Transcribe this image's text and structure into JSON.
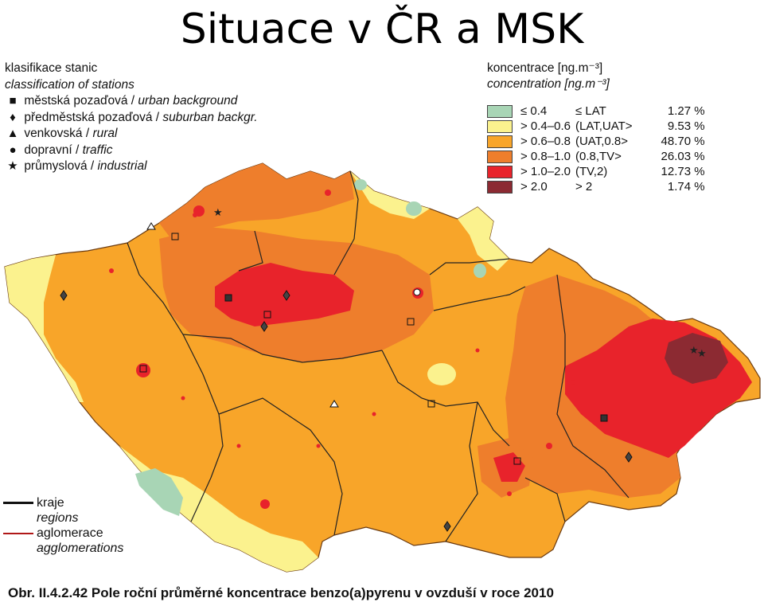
{
  "title": "Situace v ČR a MSK",
  "stations_legend": {
    "heading_cz": "klasifikace stanic",
    "heading_en": "classification of stations",
    "items": [
      {
        "icon": "square-icon",
        "symbol": "■",
        "cz": "městská pozaďová",
        "en": "urban background"
      },
      {
        "icon": "diamond-icon",
        "symbol": "♦",
        "cz": "předměstská pozaďová",
        "en": "suburban backgr."
      },
      {
        "icon": "triangle-icon",
        "symbol": "▲",
        "cz": "venkovská",
        "en": "rural"
      },
      {
        "icon": "circle-icon",
        "symbol": "●",
        "cz": "dopravní",
        "en": "traffic"
      },
      {
        "icon": "star-icon",
        "symbol": "★",
        "cz": "průmyslová",
        "en": "industrial"
      }
    ]
  },
  "concentration_legend": {
    "heading_cz": "koncentrace [ng.m⁻³]",
    "heading_en": "concentration [ng.m⁻³]",
    "classes": [
      {
        "color": "#a8d5b5",
        "range": "≤ 0.4",
        "limit": "≤ LAT",
        "pct": "1.27 %"
      },
      {
        "color": "#fbf28e",
        "range": "> 0.4–0.6",
        "limit": "(LAT,UAT>",
        "pct": "9.53 %"
      },
      {
        "color": "#f8a529",
        "range": "> 0.6–0.8",
        "limit": "(UAT,0.8>",
        "pct": "48.70 %"
      },
      {
        "color": "#ee7e2c",
        "range": "> 0.8–1.0",
        "limit": "(0.8,TV>",
        "pct": "26.03 %"
      },
      {
        "color": "#e8232b",
        "range": "> 1.0–2.0",
        "limit": "(TV,2)",
        "pct": "12.73 %"
      },
      {
        "color": "#8c2a32",
        "range": "> 2.0",
        "limit": "> 2",
        "pct": "1.74 %"
      }
    ]
  },
  "line_legend": {
    "regions_cz": "kraje",
    "regions_en": "regions",
    "regions_color": "#111111",
    "agglo_cz": "aglomerace",
    "agglo_en": "agglomerations",
    "agglo_color": "#b01818"
  },
  "caption": "Obr. II.4.2.42 Pole roční průměrné koncentrace benzo(a)pyrenu v ovzduší v roce 2010"
}
